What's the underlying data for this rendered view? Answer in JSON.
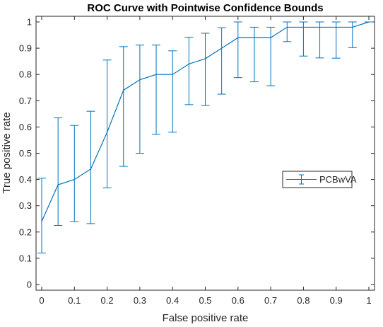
{
  "chart_data": {
    "type": "line",
    "title": "ROC Curve with Pointwise Confidence Bounds",
    "xlabel": "False positive rate",
    "ylabel": "True positive rate",
    "xlim": [
      0,
      1
    ],
    "ylim": [
      0,
      1
    ],
    "xticks": [
      "0",
      "0.1",
      "0.2",
      "0.3",
      "0.4",
      "0.5",
      "0.6",
      "0.7",
      "0.8",
      "0.9",
      "1"
    ],
    "yticks": [
      "0",
      "0.1",
      "0.2",
      "0.3",
      "0.4",
      "0.5",
      "0.6",
      "0.7",
      "0.8",
      "0.9",
      "1"
    ],
    "grid": false,
    "legend_position": "right",
    "series": [
      {
        "name": "PCBwVA",
        "color": "#0072BD",
        "x": [
          0,
          0.05,
          0.1,
          0.15,
          0.2,
          0.25,
          0.3,
          0.35,
          0.4,
          0.45,
          0.5,
          0.55,
          0.6,
          0.65,
          0.7,
          0.75,
          0.8,
          0.85,
          0.9,
          0.95,
          1.0
        ],
        "y": [
          0.24,
          0.38,
          0.4,
          0.44,
          0.58,
          0.74,
          0.78,
          0.8,
          0.8,
          0.84,
          0.86,
          0.9,
          0.94,
          0.94,
          0.94,
          0.98,
          0.98,
          0.98,
          0.98,
          0.98,
          1.0
        ],
        "lower": [
          0.12,
          0.225,
          0.24,
          0.232,
          0.368,
          0.45,
          0.5,
          0.572,
          0.58,
          0.685,
          0.682,
          0.725,
          0.788,
          0.772,
          0.757,
          0.925,
          0.87,
          0.863,
          0.862,
          0.902,
          1.0
        ],
        "upper": [
          0.405,
          0.635,
          0.606,
          0.66,
          0.855,
          0.906,
          0.912,
          0.912,
          0.89,
          0.942,
          0.957,
          0.978,
          1.0,
          0.98,
          0.98,
          1.0,
          1.0,
          1.0,
          1.0,
          1.0,
          1.0
        ]
      }
    ]
  }
}
